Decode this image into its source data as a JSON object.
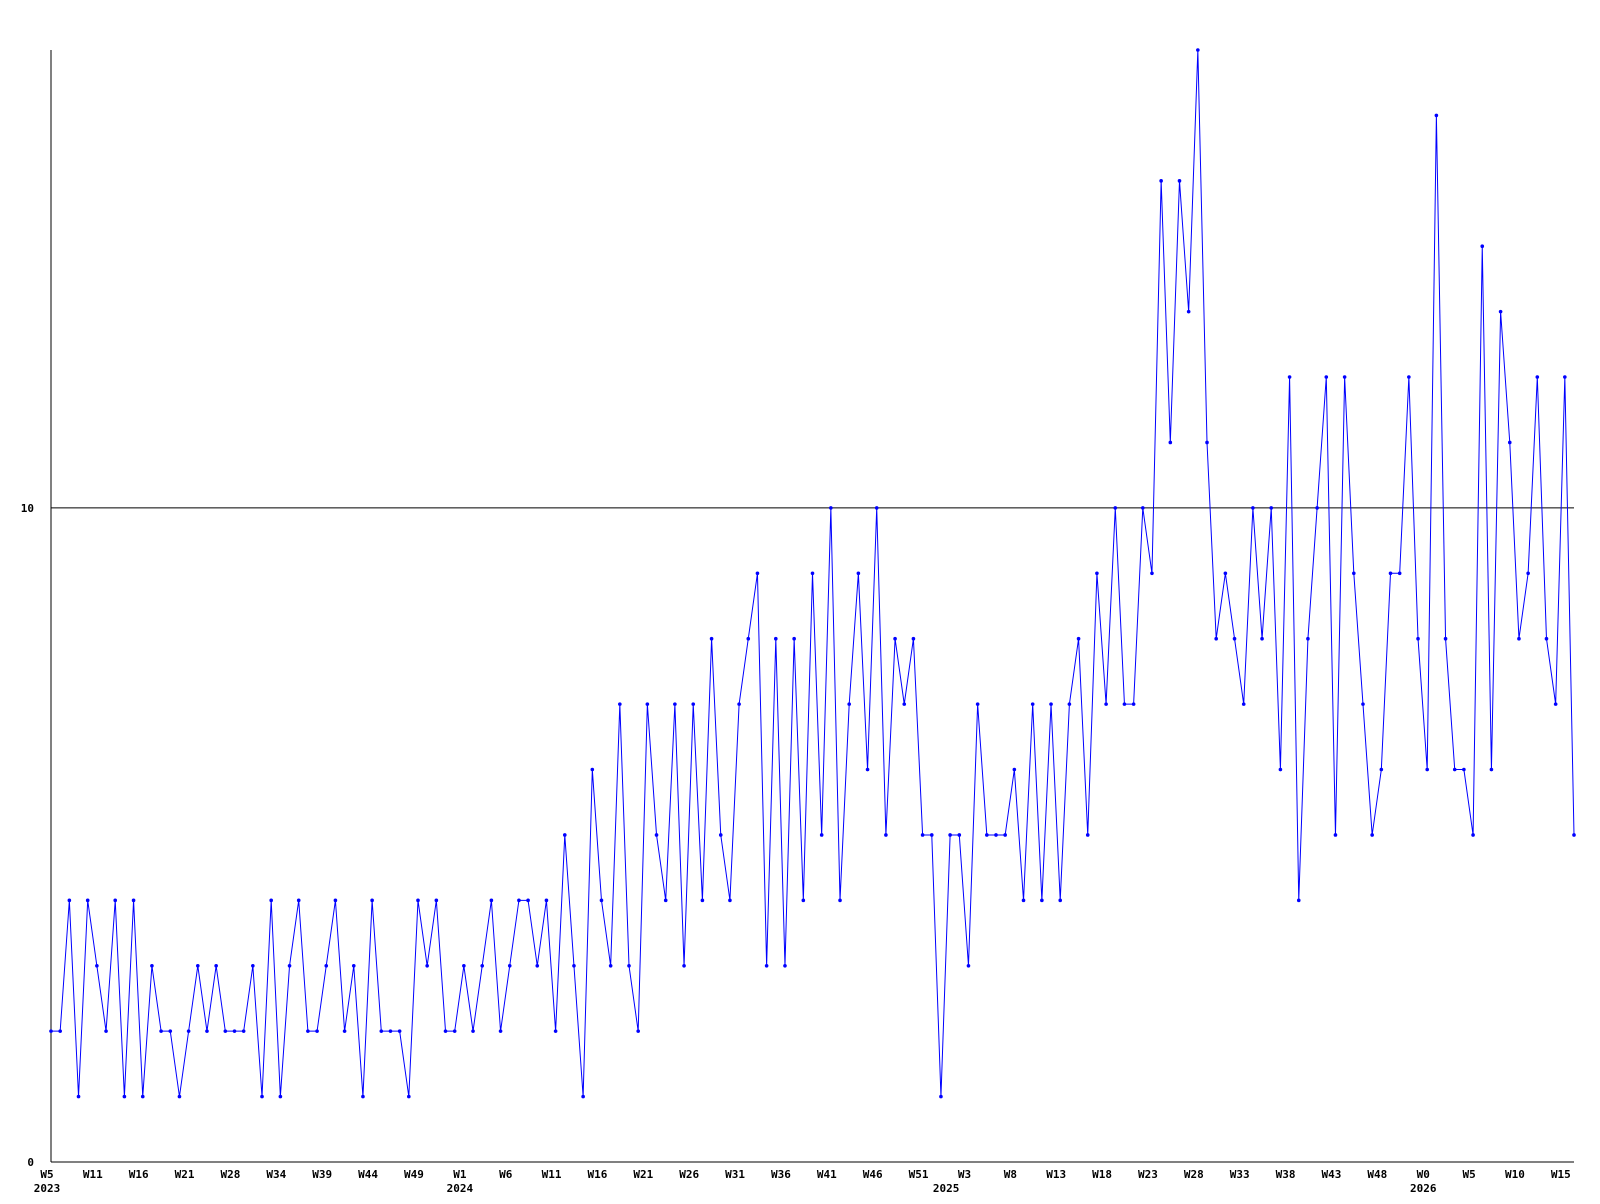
{
  "chart_data": {
    "type": "line",
    "categories": [
      "W5",
      null,
      null,
      null,
      null,
      "W11",
      null,
      null,
      null,
      null,
      "W16",
      null,
      null,
      null,
      null,
      "W21",
      null,
      null,
      null,
      null,
      "W28",
      null,
      null,
      null,
      null,
      "W34",
      null,
      null,
      null,
      null,
      "W39",
      null,
      null,
      null,
      null,
      "W44",
      null,
      null,
      null,
      null,
      "W49",
      null,
      null,
      null,
      null,
      "W1",
      null,
      null,
      null,
      null,
      "W6",
      null,
      null,
      null,
      null,
      "W11",
      null,
      null,
      null,
      null,
      "W16",
      null,
      null,
      null,
      null,
      "W21",
      null,
      null,
      null,
      null,
      "W26",
      null,
      null,
      null,
      null,
      "W31",
      null,
      null,
      null,
      null,
      "W36",
      null,
      null,
      null,
      null,
      "W41",
      null,
      null,
      null,
      null,
      "W46",
      null,
      null,
      null,
      null,
      "W51",
      null,
      null,
      null,
      null,
      "W3",
      null,
      null,
      null,
      null,
      "W8",
      null,
      null,
      null,
      null,
      "W13",
      null,
      null,
      null,
      null,
      "W18",
      null,
      null,
      null,
      null,
      "W23",
      null,
      null,
      null,
      null,
      "W28",
      null,
      null,
      null,
      null,
      "W33",
      null,
      null,
      null,
      null,
      "W38",
      null,
      null,
      null,
      null,
      "W43",
      null,
      null,
      null,
      null,
      "W48",
      null,
      null,
      null,
      null,
      "W0",
      null,
      null,
      null,
      null,
      "W5",
      null,
      null,
      null,
      null,
      "W10",
      null,
      null,
      null,
      null,
      "W15",
      null
    ],
    "years": [
      "2023",
      null,
      null,
      null,
      null,
      null,
      null,
      null,
      null,
      null,
      null,
      null,
      null,
      null,
      null,
      null,
      null,
      null,
      null,
      null,
      null,
      null,
      null,
      null,
      null,
      null,
      null,
      null,
      null,
      null,
      null,
      null,
      null,
      null,
      null,
      null,
      null,
      null,
      null,
      null,
      null,
      null,
      null,
      null,
      null,
      "2024",
      null,
      null,
      null,
      null,
      null,
      null,
      null,
      null,
      null,
      null,
      null,
      null,
      null,
      null,
      null,
      null,
      null,
      null,
      null,
      null,
      null,
      null,
      null,
      null,
      null,
      null,
      null,
      null,
      null,
      null,
      null,
      null,
      null,
      null,
      null,
      null,
      null,
      null,
      null,
      null,
      null,
      null,
      null,
      null,
      null,
      null,
      null,
      null,
      null,
      null,
      null,
      null,
      "2025",
      null,
      null,
      null,
      null,
      null,
      null,
      null,
      null,
      null,
      null,
      null,
      null,
      null,
      null,
      null,
      null,
      null,
      null,
      null,
      null,
      null,
      null,
      null,
      null,
      null,
      null,
      null,
      null,
      null,
      null,
      null,
      null,
      null,
      null,
      null,
      null,
      null,
      null,
      null,
      null,
      null,
      null,
      null,
      null,
      null,
      null,
      null,
      null,
      null,
      null,
      null,
      "2026",
      null,
      null,
      null,
      null,
      null,
      null,
      null,
      null,
      null,
      null,
      null,
      null,
      null,
      null,
      null
    ],
    "series": [
      {
        "color": "#0000ff",
        "values": [
          2,
          2,
          4,
          1,
          4,
          3,
          2,
          4,
          1,
          4,
          1,
          3,
          2,
          2,
          1,
          2,
          3,
          2,
          3,
          2,
          2,
          2,
          3,
          1,
          4,
          1,
          3,
          4,
          2,
          2,
          3,
          4,
          2,
          3,
          1,
          4,
          2,
          2,
          2,
          1,
          4,
          3,
          4,
          2,
          2,
          3,
          2,
          3,
          4,
          2,
          3,
          4,
          4,
          3,
          4,
          2,
          5,
          3,
          1,
          6,
          4,
          3,
          7,
          3,
          2,
          7,
          5,
          4,
          7,
          3,
          7,
          4,
          8,
          5,
          4,
          7,
          8,
          9,
          3,
          8,
          3,
          8,
          4,
          9,
          5,
          10,
          4,
          7,
          9,
          6,
          10,
          5,
          8,
          7,
          8,
          5,
          5,
          1,
          5,
          5,
          3,
          7,
          5,
          5,
          5,
          6,
          4,
          7,
          4,
          7,
          4,
          7,
          8,
          5,
          9,
          7,
          10,
          7,
          7,
          10,
          9,
          15,
          11,
          15,
          13,
          17,
          11,
          8,
          9,
          8,
          7,
          10,
          8,
          10,
          6,
          12,
          4,
          8,
          10,
          12,
          5,
          12,
          9,
          7,
          5,
          6,
          9,
          9,
          12,
          8,
          6,
          16,
          8,
          6,
          6,
          5,
          14,
          6,
          13,
          11,
          8,
          9,
          12,
          8,
          7,
          12,
          5
        ]
      }
    ],
    "ylim": [
      0,
      17
    ],
    "yticks": [
      0,
      10
    ],
    "grid": true
  }
}
